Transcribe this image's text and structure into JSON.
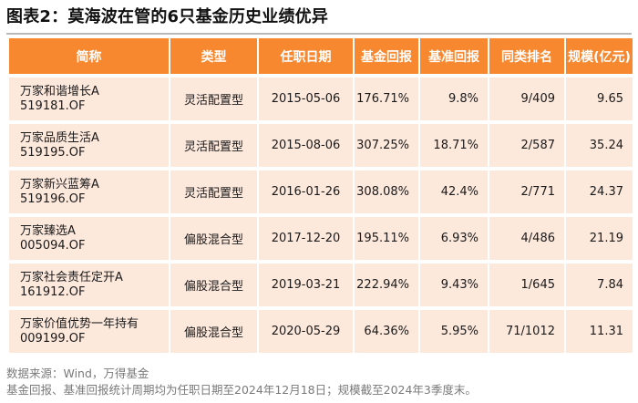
{
  "title": "图表2：莫海波在管的6只基金历史业绩优异",
  "table": {
    "headers": [
      "简称",
      "类型",
      "任职日期",
      "基金回报",
      "基准回报",
      "同类排名",
      "规模(亿元)"
    ],
    "rows": [
      {
        "name": "万家和谐增长A",
        "code": "519181.OF",
        "type": "灵活配置型",
        "date": "2015-05-06",
        "fund_return": "176.71%",
        "bench_return": "9.8%",
        "rank": "9/409",
        "scale": "9.65"
      },
      {
        "name": "万家品质生活A",
        "code": "519195.OF",
        "type": "灵活配置型",
        "date": "2015-08-06",
        "fund_return": "307.25%",
        "bench_return": "18.71%",
        "rank": "2/587",
        "scale": "35.24"
      },
      {
        "name": "万家新兴蓝筹A",
        "code": "519196.OF",
        "type": "灵活配置型",
        "date": "2016-01-26",
        "fund_return": "308.08%",
        "bench_return": "42.4%",
        "rank": "2/771",
        "scale": "24.37"
      },
      {
        "name": "万家臻选A",
        "code": "005094.OF",
        "type": "偏股混合型",
        "date": "2017-12-20",
        "fund_return": "195.11%",
        "bench_return": "6.93%",
        "rank": "4/486",
        "scale": "21.19"
      },
      {
        "name": "万家社会责任定开A",
        "code": "161912.OF",
        "type": "偏股混合型",
        "date": "2019-03-21",
        "fund_return": "222.94%",
        "bench_return": "9.43%",
        "rank": "1/645",
        "scale": "7.84"
      },
      {
        "name": "万家价值优势一年持有",
        "code": "009199.OF",
        "type": "偏股混合型",
        "date": "2020-05-29",
        "fund_return": "64.36%",
        "bench_return": "5.95%",
        "rank": "71/1012",
        "scale": "11.31"
      }
    ]
  },
  "source": "数据来源：Wind，万得基金",
  "note": "基金回报、基准回报统计周期均为任职日期至2024年12月18日；规模截至2024年3季度末。",
  "colors": {
    "header_bg": "#f7882f",
    "row_bg": "#fde8dc"
  }
}
